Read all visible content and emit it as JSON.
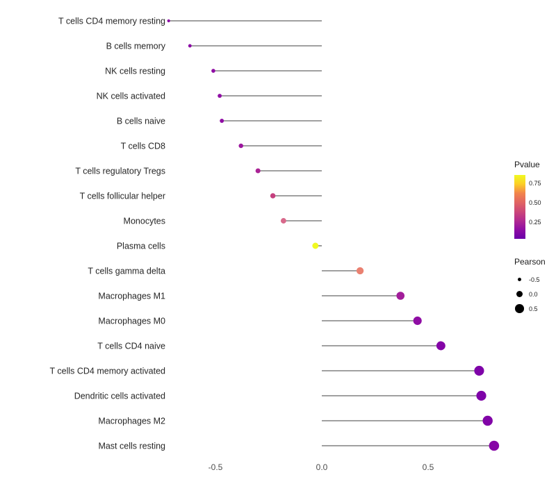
{
  "chart_data": {
    "type": "scatter",
    "subtype": "lollipop",
    "title": "",
    "xlabel": "",
    "ylabel": "",
    "xlim": [
      -0.8,
      1.07
    ],
    "grid": false,
    "x_ticks": [
      {
        "label": "-0.5",
        "value": -0.5
      },
      {
        "label": "0.0",
        "value": 0.0
      },
      {
        "label": "0.5",
        "value": 0.5
      }
    ],
    "points": [
      {
        "label": "T cells CD4 memory resting",
        "pearson": -0.72,
        "pvalue": 0.15,
        "color": "#8b0aa5"
      },
      {
        "label": "B cells memory",
        "pearson": -0.62,
        "pvalue": 0.15,
        "color": "#8b0aa5"
      },
      {
        "label": "NK cells resting",
        "pearson": -0.51,
        "pvalue": 0.18,
        "color": "#8f0da4"
      },
      {
        "label": "NK cells activated",
        "pearson": -0.48,
        "pvalue": 0.18,
        "color": "#8f0da4"
      },
      {
        "label": "B cells naive",
        "pearson": -0.47,
        "pvalue": 0.18,
        "color": "#8f0da4"
      },
      {
        "label": "T cells CD8",
        "pearson": -0.38,
        "pvalue": 0.22,
        "color": "#9c179e"
      },
      {
        "label": "T cells regulatory Tregs",
        "pearson": -0.3,
        "pvalue": 0.32,
        "color": "#aa2395"
      },
      {
        "label": "T cells follicular helper",
        "pearson": -0.23,
        "pvalue": 0.45,
        "color": "#c5407e"
      },
      {
        "label": "Monocytes",
        "pearson": -0.18,
        "pvalue": 0.55,
        "color": "#d8698b"
      },
      {
        "label": "Plasma cells",
        "pearson": -0.03,
        "pvalue": 0.92,
        "color": "#f0f921"
      },
      {
        "label": "T cells gamma delta",
        "pearson": 0.18,
        "pvalue": 0.58,
        "color": "#ea8171"
      },
      {
        "label": "Macrophages M1",
        "pearson": 0.37,
        "pvalue": 0.25,
        "color": "#a21d9a"
      },
      {
        "label": "Macrophages M0",
        "pearson": 0.45,
        "pvalue": 0.18,
        "color": "#8f0da4"
      },
      {
        "label": "T cells CD4 naive",
        "pearson": 0.56,
        "pvalue": 0.08,
        "color": "#8405a7"
      },
      {
        "label": "T cells CD4 memory activated",
        "pearson": 0.74,
        "pvalue": 0.02,
        "color": "#7e03a8"
      },
      {
        "label": "Dendritic cells activated",
        "pearson": 0.75,
        "pvalue": 0.02,
        "color": "#7e03a8"
      },
      {
        "label": "Macrophages M2",
        "pearson": 0.78,
        "pvalue": 0.02,
        "color": "#8104a7"
      },
      {
        "label": "Mast cells resting",
        "pearson": 0.81,
        "pvalue": 0.01,
        "color": "#8606a6"
      }
    ],
    "legend": {
      "pvalue": {
        "title": "Pvalue",
        "ticks": [
          "0.75",
          "0.50",
          "0.25"
        ],
        "gradient": [
          "#f0f921",
          "#fcce25",
          "#f2844b",
          "#e16462",
          "#cc4778",
          "#b12a90",
          "#8f0da4",
          "#6a00a8"
        ]
      },
      "pearson": {
        "title": "Pearson",
        "items": [
          {
            "label": "-0.5",
            "value": -0.5
          },
          {
            "label": "0.0",
            "value": 0.0
          },
          {
            "label": "0.5",
            "value": 0.5
          }
        ]
      }
    },
    "stem_color": "#000000"
  }
}
